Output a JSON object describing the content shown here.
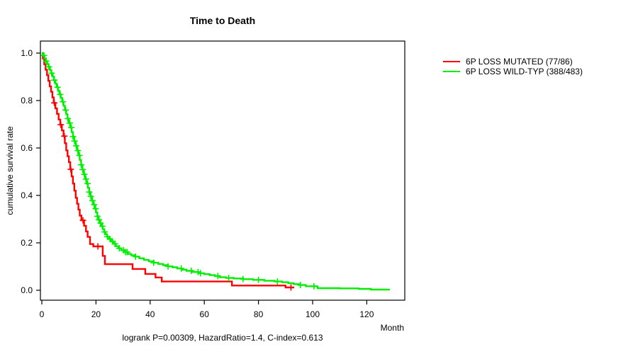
{
  "window": {
    "background": "#ffffff"
  },
  "header": {
    "title": "Time to Death"
  },
  "axes": {
    "xlabel": "Month",
    "ylabel": "cumulative survival rate",
    "x_ticks": [
      0,
      20,
      40,
      60,
      80,
      100,
      120
    ],
    "y_ticks": [
      {
        "value": 0.0,
        "label": "0.0"
      },
      {
        "value": 0.2,
        "label": "0.2"
      },
      {
        "value": 0.4,
        "label": "0.4"
      },
      {
        "value": 0.6,
        "label": "0.6"
      },
      {
        "value": 0.8,
        "label": "0.8"
      },
      {
        "value": 1.0,
        "label": "1.0"
      }
    ]
  },
  "legend": {
    "items": [
      {
        "label": "6P LOSS MUTATED (77/86)",
        "color": "#ff0000"
      },
      {
        "label": "6P LOSS WILD-TYP (388/483)",
        "color": "#00ee00"
      }
    ]
  },
  "footer": {
    "stats": "logrank P=0.00309, HazardRatio=1.4, C-index=0.613"
  },
  "chart_data": {
    "type": "line",
    "subtype": "kaplan-meier-step",
    "title": "Time to Death",
    "xlabel": "Month",
    "ylabel": "cumulative survival rate",
    "xlim": [
      0,
      133
    ],
    "ylim": [
      0,
      1.0
    ],
    "x_ticks": [
      0,
      20,
      40,
      60,
      80,
      100,
      120
    ],
    "y_ticks": [
      0.0,
      0.2,
      0.4,
      0.6,
      0.8,
      1.0
    ],
    "grid": false,
    "legend_position": "right-outside",
    "annotation": "logrank P=0.00309, HazardRatio=1.4, C-index=0.613",
    "series": [
      {
        "name": "6P LOSS MUTATED (77/86)",
        "color": "#ff0000",
        "events": 77,
        "n": 86,
        "end_time": 93.2,
        "steps": [
          [
            0.4,
            0.977
          ],
          [
            0.9,
            0.953
          ],
          [
            1.4,
            0.93
          ],
          [
            1.9,
            0.907
          ],
          [
            2.4,
            0.883
          ],
          [
            2.9,
            0.86
          ],
          [
            3.4,
            0.837
          ],
          [
            3.9,
            0.813
          ],
          [
            4.4,
            0.79
          ],
          [
            5.0,
            0.767
          ],
          [
            5.6,
            0.744
          ],
          [
            6.2,
            0.72
          ],
          [
            6.8,
            0.698
          ],
          [
            7.4,
            0.674
          ],
          [
            8.0,
            0.65
          ],
          [
            8.5,
            0.62
          ],
          [
            9.0,
            0.59
          ],
          [
            9.5,
            0.565
          ],
          [
            10.0,
            0.54
          ],
          [
            10.5,
            0.51
          ],
          [
            11.0,
            0.48
          ],
          [
            11.5,
            0.45
          ],
          [
            12.0,
            0.42
          ],
          [
            12.5,
            0.39
          ],
          [
            13.0,
            0.365
          ],
          [
            13.5,
            0.34
          ],
          [
            14.0,
            0.315
          ],
          [
            14.6,
            0.295
          ],
          [
            15.6,
            0.272
          ],
          [
            16.3,
            0.248
          ],
          [
            16.9,
            0.225
          ],
          [
            17.8,
            0.195
          ],
          [
            19.0,
            0.185
          ],
          [
            22.5,
            0.145
          ],
          [
            23.3,
            0.11
          ],
          [
            33.5,
            0.09
          ],
          [
            38.2,
            0.069
          ],
          [
            42.0,
            0.054
          ],
          [
            44.3,
            0.037
          ],
          [
            70.2,
            0.02
          ],
          [
            90.0,
            0.012
          ]
        ],
        "censor_times": [
          4.6,
          7.0,
          8.3,
          10.7,
          15.2,
          20.7,
          92.0
        ]
      },
      {
        "name": "6P LOSS WILD-TYP (388/483)",
        "color": "#00ee00",
        "events": 388,
        "n": 483,
        "end_time": 128.5,
        "steps": [
          [
            0.5,
            0.99
          ],
          [
            1.0,
            0.978
          ],
          [
            1.5,
            0.966
          ],
          [
            2.0,
            0.954
          ],
          [
            2.5,
            0.942
          ],
          [
            3.0,
            0.928
          ],
          [
            3.5,
            0.915
          ],
          [
            4.0,
            0.901
          ],
          [
            4.5,
            0.886
          ],
          [
            5.0,
            0.871
          ],
          [
            5.5,
            0.856
          ],
          [
            6.0,
            0.841
          ],
          [
            6.5,
            0.826
          ],
          [
            7.0,
            0.811
          ],
          [
            7.5,
            0.795
          ],
          [
            8.0,
            0.778
          ],
          [
            8.5,
            0.76
          ],
          [
            9.0,
            0.742
          ],
          [
            9.5,
            0.724
          ],
          [
            10.0,
            0.705
          ],
          [
            10.5,
            0.686
          ],
          [
            11.0,
            0.667
          ],
          [
            11.5,
            0.648
          ],
          [
            12.0,
            0.629
          ],
          [
            12.5,
            0.609
          ],
          [
            13.0,
            0.589
          ],
          [
            13.5,
            0.569
          ],
          [
            14.0,
            0.549
          ],
          [
            14.5,
            0.529
          ],
          [
            15.0,
            0.509
          ],
          [
            15.5,
            0.489
          ],
          [
            16.0,
            0.469
          ],
          [
            16.5,
            0.45
          ],
          [
            17.0,
            0.432
          ],
          [
            17.5,
            0.414
          ],
          [
            18.0,
            0.396
          ],
          [
            18.5,
            0.378
          ],
          [
            19.0,
            0.361
          ],
          [
            19.5,
            0.344
          ],
          [
            20.0,
            0.328
          ],
          [
            20.5,
            0.312
          ],
          [
            21.0,
            0.297
          ],
          [
            21.5,
            0.283
          ],
          [
            22.0,
            0.27
          ],
          [
            22.5,
            0.258
          ],
          [
            23.0,
            0.246
          ],
          [
            23.5,
            0.236
          ],
          [
            24.1,
            0.226
          ],
          [
            24.8,
            0.216
          ],
          [
            25.6,
            0.206
          ],
          [
            26.4,
            0.196
          ],
          [
            27.3,
            0.186
          ],
          [
            28.3,
            0.177
          ],
          [
            29.4,
            0.169
          ],
          [
            30.6,
            0.161
          ],
          [
            31.8,
            0.153
          ],
          [
            33.0,
            0.148
          ],
          [
            34.5,
            0.142
          ],
          [
            36.0,
            0.135
          ],
          [
            37.7,
            0.128
          ],
          [
            39.5,
            0.122
          ],
          [
            41.3,
            0.116
          ],
          [
            43.0,
            0.111
          ],
          [
            44.8,
            0.106
          ],
          [
            46.6,
            0.101
          ],
          [
            48.3,
            0.097
          ],
          [
            50.0,
            0.092
          ],
          [
            51.7,
            0.087
          ],
          [
            53.4,
            0.082
          ],
          [
            55.6,
            0.077
          ],
          [
            57.9,
            0.072
          ],
          [
            60.0,
            0.068
          ],
          [
            62.0,
            0.064
          ],
          [
            63.9,
            0.06
          ],
          [
            65.7,
            0.055
          ],
          [
            68.0,
            0.052
          ],
          [
            70.9,
            0.05
          ],
          [
            74.3,
            0.047
          ],
          [
            78.0,
            0.044
          ],
          [
            82.2,
            0.04
          ],
          [
            86.0,
            0.037
          ],
          [
            88.7,
            0.034
          ],
          [
            91.0,
            0.03
          ],
          [
            93.0,
            0.026
          ],
          [
            95.0,
            0.022
          ],
          [
            97.5,
            0.017
          ],
          [
            101.8,
            0.009
          ],
          [
            110.0,
            0.008
          ],
          [
            117.0,
            0.006
          ],
          [
            121.5,
            0.003
          ]
        ],
        "censor_times": [
          0.8,
          1.6,
          2.6,
          3.6,
          4.6,
          5.8,
          6.8,
          7.8,
          8.8,
          9.6,
          10.3,
          10.9,
          11.5,
          12.1,
          12.7,
          13.3,
          13.9,
          14.5,
          15.1,
          15.7,
          16.3,
          16.9,
          17.5,
          18.1,
          18.7,
          19.3,
          19.9,
          20.5,
          21.1,
          21.7,
          22.4,
          23.2,
          24.2,
          25.2,
          26.1,
          27.0,
          28.6,
          30.2,
          30.9,
          31.5,
          34.6,
          41.3,
          46.6,
          51.5,
          55.2,
          57.7,
          58.6,
          65.0,
          69.0,
          74.3,
          80.0,
          87.0,
          95.5,
          100.5
        ]
      }
    ]
  }
}
